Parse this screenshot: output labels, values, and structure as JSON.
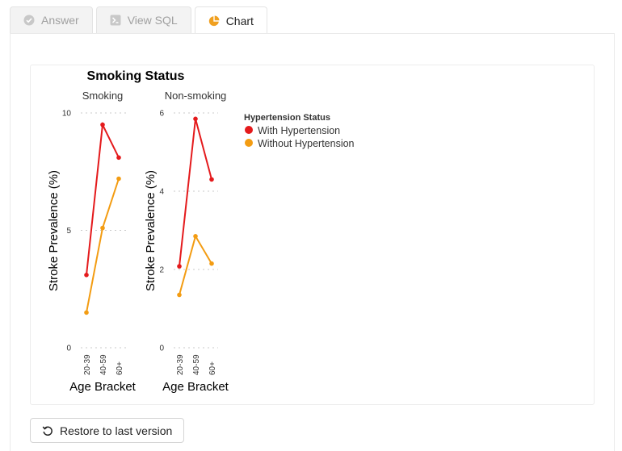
{
  "tabs": [
    {
      "label": "Answer",
      "icon": "check-circle-icon"
    },
    {
      "label": "View SQL",
      "icon": "terminal-icon"
    },
    {
      "label": "Chart",
      "icon": "pie-chart-icon"
    }
  ],
  "active_tab": "Chart",
  "restore_label": "Restore to last version",
  "colors": {
    "with": "#e41a1c",
    "without": "#f39c12",
    "pie": "#f0a020"
  },
  "chart_data": {
    "type": "line",
    "title": "Smoking Status",
    "xlabel": "Age Bracket",
    "ylabel": "Stroke Prevalence (%)",
    "categories": [
      "20-39",
      "40-59",
      "60+"
    ],
    "legend_title": "Hypertension Status",
    "legend_position": "right",
    "grid": true,
    "facets": [
      {
        "label": "Smoking",
        "ylim": [
          0,
          10
        ],
        "yticks": [
          0,
          5,
          10
        ],
        "series": [
          {
            "name": "With Hypertension",
            "values": [
              3.1,
              9.5,
              8.1
            ]
          },
          {
            "name": "Without Hypertension",
            "values": [
              1.5,
              5.1,
              7.2
            ]
          }
        ]
      },
      {
        "label": "Non-smoking",
        "ylim": [
          0,
          6
        ],
        "yticks": [
          0,
          2,
          4,
          6
        ],
        "series": [
          {
            "name": "With Hypertension",
            "values": [
              2.08,
              5.85,
              4.3
            ]
          },
          {
            "name": "Without Hypertension",
            "values": [
              1.35,
              2.85,
              2.15
            ]
          }
        ]
      }
    ]
  }
}
